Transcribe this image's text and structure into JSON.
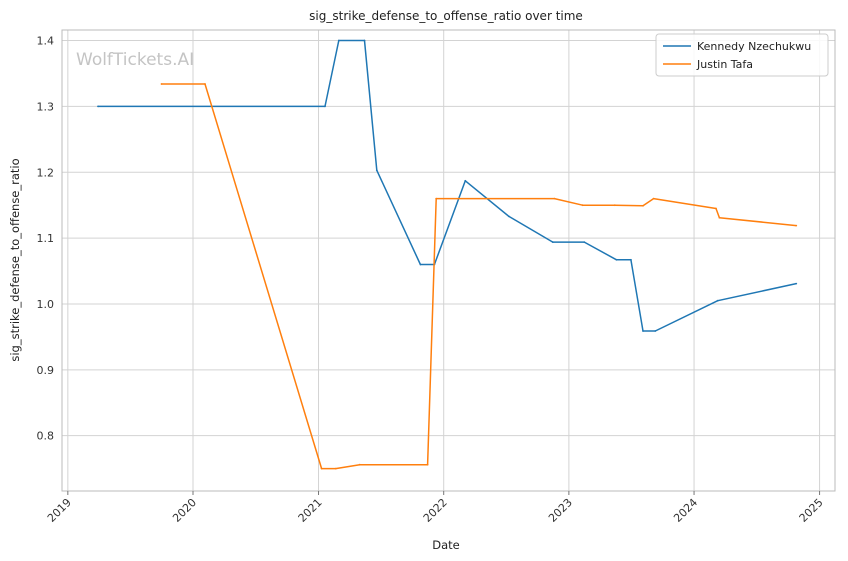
{
  "watermark": "WolfTickets.AI",
  "chart_data": {
    "type": "line",
    "title": "sig_strike_defense_to_offense_ratio over time",
    "xlabel": "Date",
    "ylabel": "sig_strike_defense_to_offense_ratio",
    "x_ticks": [
      "2019",
      "2020",
      "2021",
      "2022",
      "2023",
      "2024",
      "2025"
    ],
    "y_ticks": [
      "0.8",
      "0.9",
      "1.0",
      "1.1",
      "1.2",
      "1.3",
      "1.4"
    ],
    "xlim": [
      "2018-12-15",
      "2025-02-15"
    ],
    "ylim": [
      0.716,
      1.416
    ],
    "grid": true,
    "legend_position": "top-right",
    "colors": {
      "series_1": "#1f77b4",
      "series_2": "#ff7f0e",
      "grid": "#d3d3d3",
      "spine": "#bbbbbb"
    },
    "series": [
      {
        "name": "Kennedy Nzechukwu",
        "color": "#1f77b4",
        "points": [
          [
            "2019-03-30",
            1.3
          ],
          [
            "2021-01-20",
            1.3
          ],
          [
            "2021-03-01",
            1.4
          ],
          [
            "2021-05-15",
            1.4
          ],
          [
            "2021-06-20",
            1.203
          ],
          [
            "2021-10-25",
            1.06
          ],
          [
            "2021-12-05",
            1.06
          ],
          [
            "2022-03-05",
            1.187
          ],
          [
            "2022-07-10",
            1.133
          ],
          [
            "2022-11-15",
            1.094
          ],
          [
            "2023-02-15",
            1.094
          ],
          [
            "2023-05-20",
            1.067
          ],
          [
            "2023-07-01",
            1.067
          ],
          [
            "2023-08-05",
            0.959
          ],
          [
            "2023-09-10",
            0.959
          ],
          [
            "2024-03-10",
            1.005
          ],
          [
            "2024-10-25",
            1.031
          ]
        ]
      },
      {
        "name": "Justin Tafa",
        "color": "#ff7f0e",
        "points": [
          [
            "2019-10-01",
            1.334
          ],
          [
            "2020-02-05",
            1.334
          ],
          [
            "2021-01-10",
            0.75
          ],
          [
            "2021-02-20",
            0.75
          ],
          [
            "2021-05-01",
            0.756
          ],
          [
            "2021-11-15",
            0.756
          ],
          [
            "2021-12-10",
            1.16
          ],
          [
            "2022-11-20",
            1.16
          ],
          [
            "2023-02-10",
            1.15
          ],
          [
            "2023-05-15",
            1.15
          ],
          [
            "2023-08-05",
            1.149
          ],
          [
            "2023-09-05",
            1.16
          ],
          [
            "2024-03-05",
            1.145
          ],
          [
            "2024-03-15",
            1.131
          ],
          [
            "2024-10-25",
            1.119
          ]
        ]
      }
    ]
  }
}
